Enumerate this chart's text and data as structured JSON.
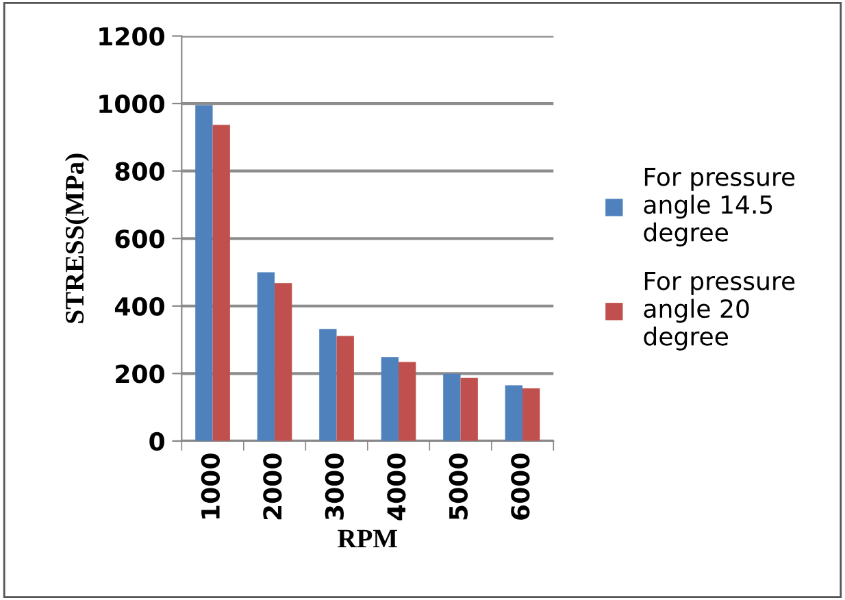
{
  "chart_data": {
    "type": "bar",
    "xlabel": "RPM",
    "ylabel": "STRESS(MPa)",
    "categories": [
      "1000",
      "2000",
      "3000",
      "4000",
      "5000",
      "6000"
    ],
    "series": [
      {
        "name": "For pressure\nangle 14.5\ndegree",
        "color": "#4f81bd",
        "values": [
          995,
          500,
          332,
          249,
          199,
          165
        ]
      },
      {
        "name": "For pressure\nangle 20\ndegree",
        "color": "#c0504d",
        "values": [
          937,
          468,
          311,
          234,
          187,
          156
        ]
      }
    ],
    "ylim": [
      0,
      1200
    ],
    "yticks": [
      0,
      200,
      400,
      600,
      800,
      1000,
      1200
    ],
    "grid": "y",
    "legend": "right"
  }
}
